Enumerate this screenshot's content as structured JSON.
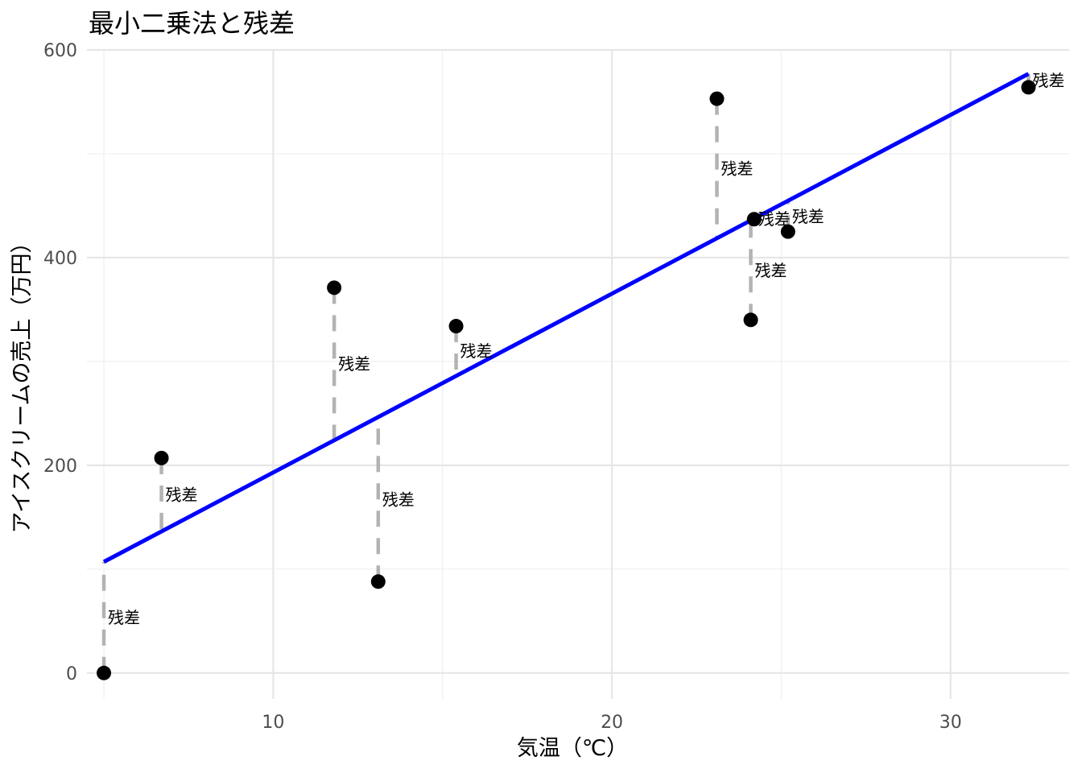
{
  "chart_data": {
    "type": "scatter",
    "title": "最小二乗法と残差",
    "xlabel": "気温（℃）",
    "ylabel": "アイスクリームの売上（万円）",
    "xlim": [
      4.5,
      33.5
    ],
    "ylim": [
      -25,
      600
    ],
    "x_ticks": [
      10,
      20,
      30
    ],
    "x_tick_labels": [
      "10",
      "20",
      "30"
    ],
    "y_ticks": [
      0,
      200,
      400,
      600
    ],
    "y_tick_labels": [
      "0",
      "200",
      "400",
      "600"
    ],
    "x_minor_ticks": [
      5,
      15,
      25
    ],
    "y_minor_ticks": [
      100,
      300,
      500
    ],
    "grid": true,
    "fit_line": {
      "x": [
        5,
        32.3
      ],
      "y": [
        107,
        577
      ]
    },
    "points": [
      {
        "x": 5.0,
        "y": 0,
        "fitted": 107,
        "label": "残差"
      },
      {
        "x": 6.7,
        "y": 207,
        "fitted": 136,
        "label": "残差"
      },
      {
        "x": 11.8,
        "y": 371,
        "fitted": 224,
        "label": "残差"
      },
      {
        "x": 13.1,
        "y": 88,
        "fitted": 246,
        "label": "残差"
      },
      {
        "x": 15.4,
        "y": 334,
        "fitted": 286,
        "label": "残差"
      },
      {
        "x": 23.1,
        "y": 553,
        "fitted": 418,
        "label": "残差"
      },
      {
        "x": 24.1,
        "y": 340,
        "fitted": 435,
        "label": "残差"
      },
      {
        "x": 24.2,
        "y": 437,
        "fitted": 437,
        "label": "残差"
      },
      {
        "x": 25.2,
        "y": 425,
        "fitted": 454,
        "label": "残差"
      },
      {
        "x": 32.3,
        "y": 564,
        "fitted": 577,
        "label": "残差"
      }
    ],
    "colors": {
      "line": "#0000ff",
      "points": "#000000",
      "residual": "#b3b3b3"
    }
  }
}
